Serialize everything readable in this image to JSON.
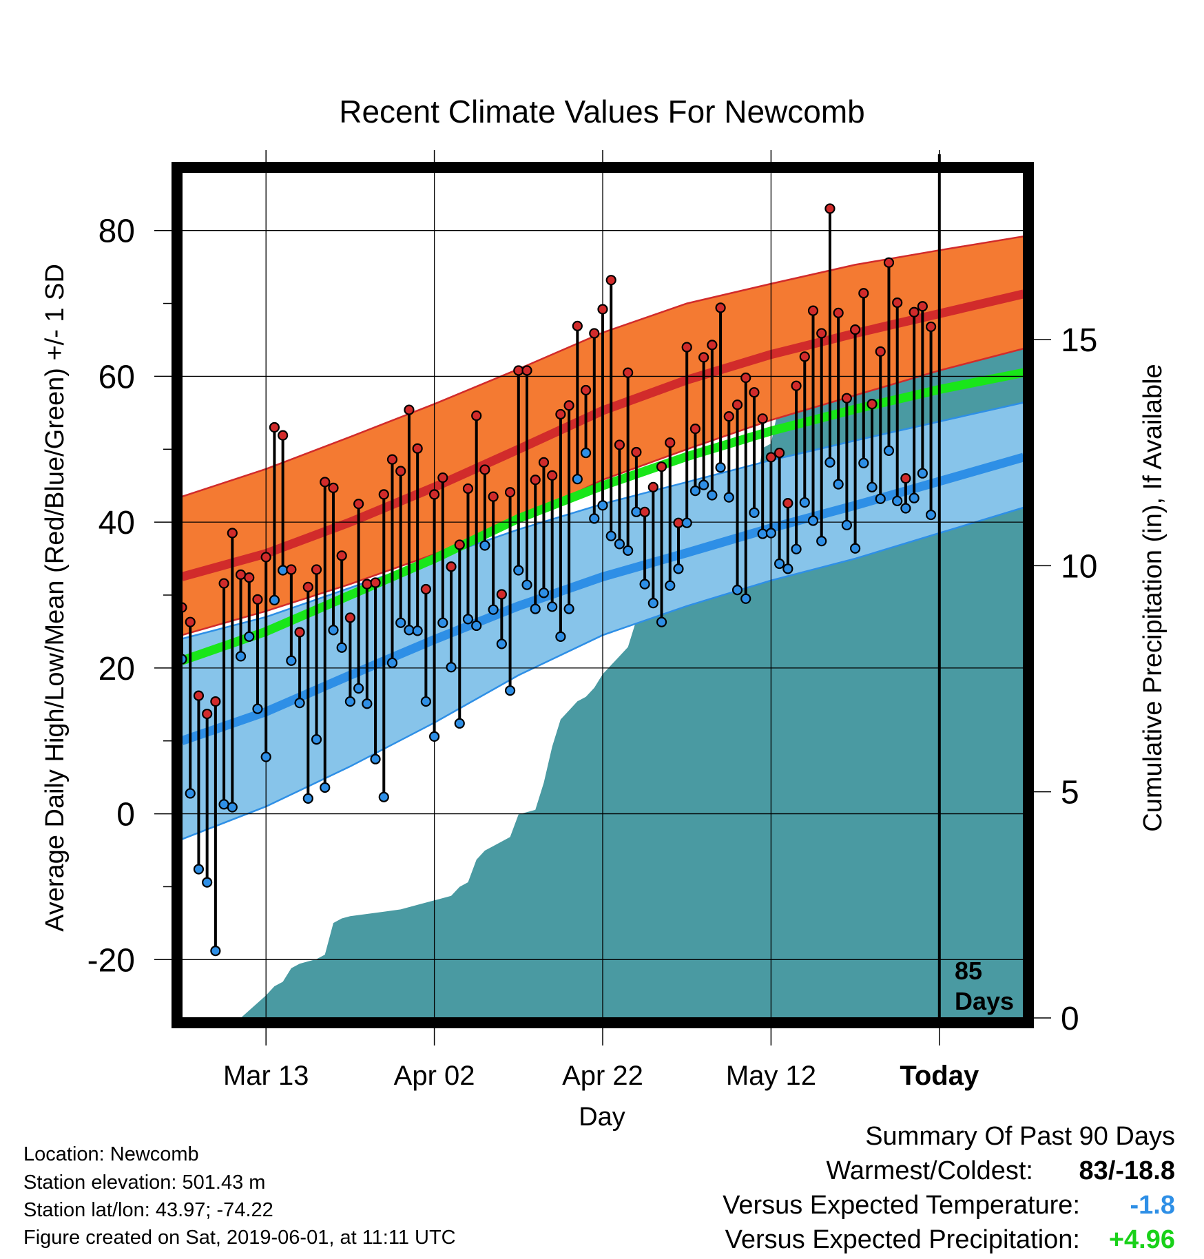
{
  "chart_data": {
    "type": "line",
    "title": "Recent Climate Values For Newcomb",
    "xlabel": "Day",
    "ylabel_left": "Average Daily High/Low/Mean (Red/Blue/Green) +/- 1 SD",
    "ylabel_right": "Cumulative Precipitation (in), If Available",
    "x_ticks": [
      {
        "label": "Mar 13",
        "day": 10
      },
      {
        "label": "Apr 02",
        "day": 30
      },
      {
        "label": "Apr 22",
        "day": 50
      },
      {
        "label": "May 12",
        "day": 70
      },
      {
        "label": "Today",
        "day": 90
      }
    ],
    "xlim": [
      0,
      100
    ],
    "ylim_left": [
      -28,
      88
    ],
    "ylim_right": [
      0,
      18.7
    ],
    "y_ticks_left": [
      "80",
      "60",
      "40",
      "20",
      "0",
      "-20"
    ],
    "y_ticks_left_values": [
      80,
      60,
      40,
      20,
      0,
      -20
    ],
    "y_ticks_right": [
      "15",
      "10",
      "5",
      "0"
    ],
    "y_ticks_right_values": [
      15,
      10,
      5,
      0
    ],
    "grid": true,
    "today_marker": {
      "day": 90,
      "label_line1": "85",
      "label_line2": "Days"
    },
    "colors": {
      "high_band": "#f47a32",
      "high_mean": "#d12b2b",
      "low_band": "#87c4ea",
      "low_mean": "#2e8fe6",
      "mean_normal": "#19e619",
      "precip": "#4a9aa2",
      "high_dot": "#d12b2b",
      "low_dot": "#2e8fe6",
      "summary_temp": "#2e8fe6",
      "summary_precip": "#19d119"
    },
    "normals": {
      "days": [
        0,
        10,
        20,
        30,
        40,
        50,
        60,
        70,
        80,
        90,
        100
      ],
      "high_mean": [
        32.5,
        35.7,
        40.0,
        44.8,
        50.0,
        55.3,
        59.5,
        63.0,
        65.9,
        68.6,
        71.3
      ],
      "high_upper": [
        43.5,
        47.3,
        51.7,
        56.2,
        61.0,
        66.0,
        70.0,
        72.7,
        75.3,
        77.3,
        79.2
      ],
      "high_lower": [
        24.5,
        27.8,
        31.5,
        35.6,
        40.3,
        45.8,
        50.0,
        54.0,
        57.4,
        60.8,
        63.8
      ],
      "low_mean": [
        10.0,
        14.0,
        19.0,
        23.9,
        28.5,
        32.5,
        35.8,
        39.2,
        42.3,
        45.6,
        48.9
      ],
      "low_upper": [
        24.0,
        27.0,
        31.0,
        35.0,
        39.0,
        42.5,
        45.5,
        48.5,
        51.2,
        53.8,
        56.4
      ],
      "low_lower": [
        -3.5,
        1.0,
        6.5,
        12.5,
        19.0,
        24.5,
        28.5,
        32.0,
        35.0,
        38.5,
        42.0
      ],
      "mean_normal": [
        21.0,
        25.0,
        30.0,
        35.0,
        40.5,
        45.0,
        49.0,
        52.5,
        55.5,
        58.2,
        60.5
      ]
    },
    "daily": {
      "start_day": 0,
      "high": [
        28.3,
        26.3,
        16.2,
        13.7,
        15.4,
        31.6,
        38.5,
        32.8,
        32.4,
        29.4,
        35.2,
        53.0,
        51.9,
        33.5,
        24.9,
        31.1,
        33.5,
        45.5,
        44.7,
        35.4,
        26.9,
        42.5,
        31.5,
        31.7,
        43.8,
        48.6,
        47.0,
        55.4,
        50.1,
        30.8,
        43.8,
        46.1,
        33.9,
        36.9,
        44.6,
        54.6,
        47.2,
        43.5,
        30.1,
        44.1,
        60.8,
        60.8,
        45.8,
        48.2,
        46.4,
        54.8,
        56.0,
        66.9,
        58.1,
        65.9,
        69.2,
        73.2,
        50.6,
        60.5,
        49.6,
        41.4,
        44.8,
        47.6,
        50.9,
        39.9,
        64.0,
        52.8,
        62.6,
        64.3,
        69.4,
        54.5,
        56.1,
        59.8,
        57.8,
        54.2,
        48.9,
        49.5,
        42.6,
        58.7,
        62.7,
        69.0,
        65.9,
        83.0,
        68.7,
        57.0,
        66.4,
        71.4,
        56.2,
        63.4,
        75.6,
        70.1,
        46.0,
        68.8,
        69.6,
        66.8
      ],
      "low": [
        21.2,
        2.8,
        -7.6,
        -9.4,
        -18.8,
        1.3,
        0.9,
        21.6,
        24.3,
        14.4,
        7.8,
        29.3,
        33.4,
        21.0,
        15.2,
        2.1,
        10.2,
        3.6,
        25.2,
        22.8,
        15.4,
        17.2,
        15.1,
        7.5,
        2.3,
        20.7,
        26.2,
        25.2,
        25.1,
        15.4,
        10.6,
        26.2,
        20.1,
        12.4,
        26.7,
        25.8,
        36.8,
        28.0,
        23.3,
        16.9,
        33.4,
        31.4,
        28.1,
        30.3,
        28.4,
        24.3,
        28.1,
        45.9,
        49.5,
        40.5,
        42.3,
        38.1,
        37.0,
        36.1,
        41.4,
        31.5,
        28.9,
        26.3,
        31.3,
        33.6,
        39.9,
        44.3,
        45.1,
        43.7,
        47.5,
        43.4,
        30.7,
        29.5,
        41.3,
        38.4,
        38.5,
        34.3,
        33.6,
        36.3,
        42.7,
        40.2,
        37.4,
        48.2,
        45.2,
        39.6,
        36.4,
        48.1,
        44.8,
        43.2,
        49.8,
        42.9,
        41.9,
        43.3,
        46.7,
        41.0
      ]
    },
    "precip": {
      "days": [
        0,
        7,
        10,
        11,
        12,
        13,
        14,
        15,
        16,
        17,
        18,
        19,
        20,
        22,
        24,
        26,
        28,
        30,
        32,
        33,
        34,
        35,
        36,
        37,
        38,
        39,
        40,
        42,
        43,
        44,
        45,
        46,
        47,
        48,
        49,
        50,
        51,
        52,
        53,
        54,
        55,
        56,
        57,
        58,
        59,
        60,
        61,
        62,
        63,
        64,
        65,
        66,
        67,
        68,
        69,
        70,
        71,
        72,
        73,
        74,
        75,
        76,
        77,
        78,
        79,
        80,
        81,
        82,
        83,
        84,
        86,
        88,
        90,
        100
      ],
      "values": [
        0,
        0,
        0.5,
        0.7,
        0.8,
        1.1,
        1.2,
        1.25,
        1.3,
        1.4,
        2.1,
        2.2,
        2.25,
        2.3,
        2.35,
        2.4,
        2.5,
        2.6,
        2.7,
        2.9,
        3.0,
        3.5,
        3.7,
        3.8,
        3.9,
        4.0,
        4.5,
        4.6,
        5.2,
        6.0,
        6.6,
        6.8,
        7.0,
        7.1,
        7.3,
        7.6,
        7.8,
        8.0,
        8.2,
        8.8,
        9.0,
        9.1,
        9.2,
        9.4,
        9.7,
        10.0,
        10.4,
        10.5,
        10.6,
        10.6,
        10.9,
        11.0,
        11.1,
        11.5,
        12.6,
        12.7,
        13.6,
        13.9,
        14.0,
        14.2,
        14.4,
        14.7,
        14.8,
        14.9,
        15.0,
        15.1,
        15.3,
        15.5,
        15.6,
        15.65,
        15.7,
        15.75,
        15.75,
        15.75
      ]
    }
  },
  "footer": {
    "location": "Location: Newcomb",
    "elevation": "Station elevation: 501.43 m",
    "latlon": "Station lat/lon: 43.97; -74.22",
    "created": "Figure created on Sat, 2019-06-01, at 11:11 UTC"
  },
  "summary": {
    "heading": "Summary Of Past 90 Days",
    "warmest_label": "Warmest/Coldest:",
    "warmest_value": "83/-18.8",
    "temp_label": "Versus Expected Temperature:",
    "temp_value": "-1.8",
    "precip_label": "Versus Expected Precipitation:",
    "precip_value": "+4.96"
  }
}
